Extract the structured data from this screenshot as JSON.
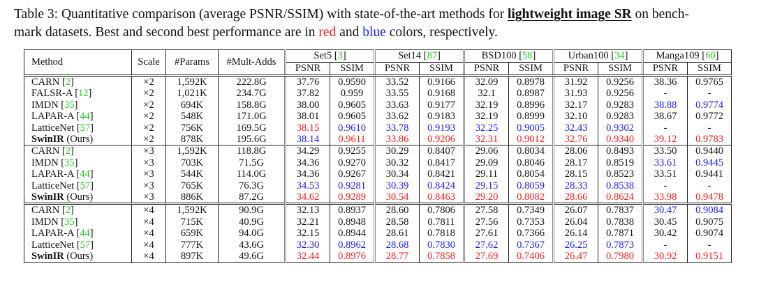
{
  "caption": {
    "prefix": "Table 3: Quantitative comparison (average PSNR/SSIM) with state-of-the-art methods for ",
    "bold": "lightweight image SR",
    "line1_end": " on bench-",
    "line2_start": "mark datasets. Best and second best performance are in ",
    "red_word": "red",
    "and_word": " and ",
    "blue_word": "blue",
    "suffix": " colors, respectively."
  },
  "colors": {
    "red": "#ff1a1a",
    "blue": "#1a1aff",
    "cite": "#22cc22"
  },
  "headers": {
    "method": "Method",
    "scale": "Scale",
    "params": "#Params",
    "madds": "#Mult-Adds",
    "datasets": [
      {
        "name": "Set5",
        "cite": "3"
      },
      {
        "name": "Set14",
        "cite": "87"
      },
      {
        "name": "BSD100",
        "cite": "58"
      },
      {
        "name": "Urban100",
        "cite": "34"
      },
      {
        "name": "Manga109",
        "cite": "60"
      }
    ],
    "psnr": "PSNR",
    "ssim": "SSIM"
  },
  "groups": [
    {
      "rows": [
        {
          "method": "CARN",
          "cite": "2",
          "scale": "×2",
          "params": "1,592K",
          "madds": "222.8G",
          "vals": [
            [
              "37.76",
              ""
            ],
            [
              "0.9590",
              ""
            ],
            [
              "33.52",
              ""
            ],
            [
              "0.9166",
              ""
            ],
            [
              "32.09",
              ""
            ],
            [
              "0.8978",
              ""
            ],
            [
              "31.92",
              ""
            ],
            [
              "0.9256",
              ""
            ],
            [
              "38.36",
              ""
            ],
            [
              "0.9765",
              ""
            ]
          ]
        },
        {
          "method": "FALSR-A",
          "cite": "12",
          "scale": "×2",
          "params": "1,021K",
          "madds": "234.7G",
          "vals": [
            [
              "37.82",
              ""
            ],
            [
              "0.959",
              ""
            ],
            [
              "33.55",
              ""
            ],
            [
              "0.9168",
              ""
            ],
            [
              "32.1",
              ""
            ],
            [
              "0.8987",
              ""
            ],
            [
              "31.93",
              ""
            ],
            [
              "0.9256",
              ""
            ],
            [
              "-",
              ""
            ],
            [
              "-",
              ""
            ]
          ]
        },
        {
          "method": "IMDN",
          "cite": "35",
          "scale": "×2",
          "params": "694K",
          "madds": "158.8G",
          "vals": [
            [
              "38.00",
              ""
            ],
            [
              "0.9605",
              ""
            ],
            [
              "33.63",
              ""
            ],
            [
              "0.9177",
              ""
            ],
            [
              "32.19",
              ""
            ],
            [
              "0.8996",
              ""
            ],
            [
              "32.17",
              ""
            ],
            [
              "0.9283",
              ""
            ],
            [
              "38.88",
              "b"
            ],
            [
              "0.9774",
              "b"
            ]
          ]
        },
        {
          "method": "LAPAR-A",
          "cite": "44",
          "scale": "×2",
          "params": "548K",
          "madds": "171.0G",
          "vals": [
            [
              "38.01",
              ""
            ],
            [
              "0.9605",
              ""
            ],
            [
              "33.62",
              ""
            ],
            [
              "0.9183",
              ""
            ],
            [
              "32.19",
              ""
            ],
            [
              "0.8999",
              ""
            ],
            [
              "32.10",
              ""
            ],
            [
              "0.9283",
              ""
            ],
            [
              "38.67",
              ""
            ],
            [
              "0.9772",
              ""
            ]
          ]
        },
        {
          "method": "LatticeNet",
          "cite": "57",
          "scale": "×2",
          "params": "756K",
          "madds": "169.5G",
          "vals": [
            [
              "38.15",
              "r"
            ],
            [
              "0.9610",
              "b"
            ],
            [
              "33.78",
              "b"
            ],
            [
              "0.9193",
              "b"
            ],
            [
              "32.25",
              "b"
            ],
            [
              "0.9005",
              "b"
            ],
            [
              "32.43",
              "b"
            ],
            [
              "0.9302",
              "b"
            ],
            [
              "-",
              ""
            ],
            [
              "-",
              ""
            ]
          ]
        },
        {
          "method": "SwinIR",
          "ours": " (Ours)",
          "scale": "×2",
          "params": "878K",
          "madds": "195.6G",
          "vals": [
            [
              "38.14",
              "b"
            ],
            [
              "0.9611",
              "r"
            ],
            [
              "33.86",
              "r"
            ],
            [
              "0.9206",
              "r"
            ],
            [
              "32.31",
              "r"
            ],
            [
              "0.9012",
              "r"
            ],
            [
              "32.76",
              "r"
            ],
            [
              "0.9340",
              "r"
            ],
            [
              "39.12",
              "r"
            ],
            [
              "0.9783",
              "r"
            ]
          ]
        }
      ]
    },
    {
      "rows": [
        {
          "method": "CARN",
          "cite": "2",
          "scale": "×3",
          "params": "1,592K",
          "madds": "118.8G",
          "vals": [
            [
              "34.29",
              ""
            ],
            [
              "0.9255",
              ""
            ],
            [
              "30.29",
              ""
            ],
            [
              "0.8407",
              ""
            ],
            [
              "29.06",
              ""
            ],
            [
              "0.8034",
              ""
            ],
            [
              "28.06",
              ""
            ],
            [
              "0.8493",
              ""
            ],
            [
              "33.50",
              ""
            ],
            [
              "0.9440",
              ""
            ]
          ]
        },
        {
          "method": "IMDN",
          "cite": "35",
          "scale": "×3",
          "params": "703K",
          "madds": "71.5G",
          "vals": [
            [
              "34.36",
              ""
            ],
            [
              "0.9270",
              ""
            ],
            [
              "30.32",
              ""
            ],
            [
              "0.8417",
              ""
            ],
            [
              "29.09",
              ""
            ],
            [
              "0.8046",
              ""
            ],
            [
              "28.17",
              ""
            ],
            [
              "0.8519",
              ""
            ],
            [
              "33.61",
              "b"
            ],
            [
              "0.9445",
              "b"
            ]
          ]
        },
        {
          "method": "LAPAR-A",
          "cite": "44",
          "scale": "×3",
          "params": "544K",
          "madds": "114.0G",
          "vals": [
            [
              "34.36",
              ""
            ],
            [
              "0.9267",
              ""
            ],
            [
              "30.34",
              ""
            ],
            [
              "0.8421",
              ""
            ],
            [
              "29.11",
              ""
            ],
            [
              "0.8054",
              ""
            ],
            [
              "28.15",
              ""
            ],
            [
              "0.8523",
              ""
            ],
            [
              "33.51",
              ""
            ],
            [
              "0.9441",
              ""
            ]
          ]
        },
        {
          "method": "LatticeNet",
          "cite": "57",
          "scale": "×3",
          "params": "765K",
          "madds": "76.3G",
          "vals": [
            [
              "34.53",
              "b"
            ],
            [
              "0.9281",
              "b"
            ],
            [
              "30.39",
              "b"
            ],
            [
              "0.8424",
              "b"
            ],
            [
              "29.15",
              "b"
            ],
            [
              "0.8059",
              "b"
            ],
            [
              "28.33",
              "b"
            ],
            [
              "0.8538",
              "b"
            ],
            [
              "-",
              ""
            ],
            [
              "-",
              ""
            ]
          ]
        },
        {
          "method": "SwinIR",
          "ours": " (Ours)",
          "scale": "×3",
          "params": "886K",
          "madds": "87.2G",
          "vals": [
            [
              "34.62",
              "r"
            ],
            [
              "0.9289",
              "r"
            ],
            [
              "30.54",
              "r"
            ],
            [
              "0.8463",
              "r"
            ],
            [
              "29.20",
              "r"
            ],
            [
              "0.8082",
              "r"
            ],
            [
              "28.66",
              "r"
            ],
            [
              "0.8624",
              "r"
            ],
            [
              "33.98",
              "r"
            ],
            [
              "0.9478",
              "r"
            ]
          ]
        }
      ]
    },
    {
      "rows": [
        {
          "method": "CARN",
          "cite": "2",
          "scale": "×4",
          "params": "1,592K",
          "madds": "90.9G",
          "vals": [
            [
              "32.13",
              ""
            ],
            [
              "0.8937",
              ""
            ],
            [
              "28.60",
              ""
            ],
            [
              "0.7806",
              ""
            ],
            [
              "27.58",
              ""
            ],
            [
              "0.7349",
              ""
            ],
            [
              "26.07",
              ""
            ],
            [
              "0.7837",
              ""
            ],
            [
              "30.47",
              "b"
            ],
            [
              "0.9084",
              "b"
            ]
          ]
        },
        {
          "method": "IMDN",
          "cite": "35",
          "scale": "×4",
          "params": "715K",
          "madds": "40.9G",
          "vals": [
            [
              "32.21",
              ""
            ],
            [
              "0.8948",
              ""
            ],
            [
              "28.58",
              ""
            ],
            [
              "0.7811",
              ""
            ],
            [
              "27.56",
              ""
            ],
            [
              "0.7353",
              ""
            ],
            [
              "26.04",
              ""
            ],
            [
              "0.7838",
              ""
            ],
            [
              "30.45",
              ""
            ],
            [
              "0.9075",
              ""
            ]
          ]
        },
        {
          "method": "LAPAR-A",
          "cite": "44",
          "scale": "×4",
          "params": "659K",
          "madds": "94.0G",
          "vals": [
            [
              "32.15",
              ""
            ],
            [
              "0.8944",
              ""
            ],
            [
              "28.61",
              ""
            ],
            [
              "0.7818",
              ""
            ],
            [
              "27.61",
              ""
            ],
            [
              "0.7366",
              ""
            ],
            [
              "26.14",
              ""
            ],
            [
              "0.7871",
              ""
            ],
            [
              "30.42",
              ""
            ],
            [
              "0.9074",
              ""
            ]
          ]
        },
        {
          "method": "LatticeNet",
          "cite": "57",
          "scale": "×4",
          "params": "777K",
          "madds": "43.6G",
          "vals": [
            [
              "32.30",
              "b"
            ],
            [
              "0.8962",
              "b"
            ],
            [
              "28.68",
              "b"
            ],
            [
              "0.7830",
              "b"
            ],
            [
              "27.62",
              "b"
            ],
            [
              "0.7367",
              "b"
            ],
            [
              "26.25",
              "b"
            ],
            [
              "0.7873",
              "b"
            ],
            [
              "-",
              ""
            ],
            [
              "-",
              ""
            ]
          ]
        },
        {
          "method": "SwinIR",
          "ours": " (Ours)",
          "scale": "×4",
          "params": "897K",
          "madds": "49.6G",
          "vals": [
            [
              "32.44",
              "r"
            ],
            [
              "0.8976",
              "r"
            ],
            [
              "28.77",
              "r"
            ],
            [
              "0.7858",
              "r"
            ],
            [
              "27.69",
              "r"
            ],
            [
              "0.7406",
              "r"
            ],
            [
              "26.47",
              "r"
            ],
            [
              "0.7980",
              "r"
            ],
            [
              "30.92",
              "r"
            ],
            [
              "0.9151",
              "r"
            ]
          ]
        }
      ]
    }
  ]
}
